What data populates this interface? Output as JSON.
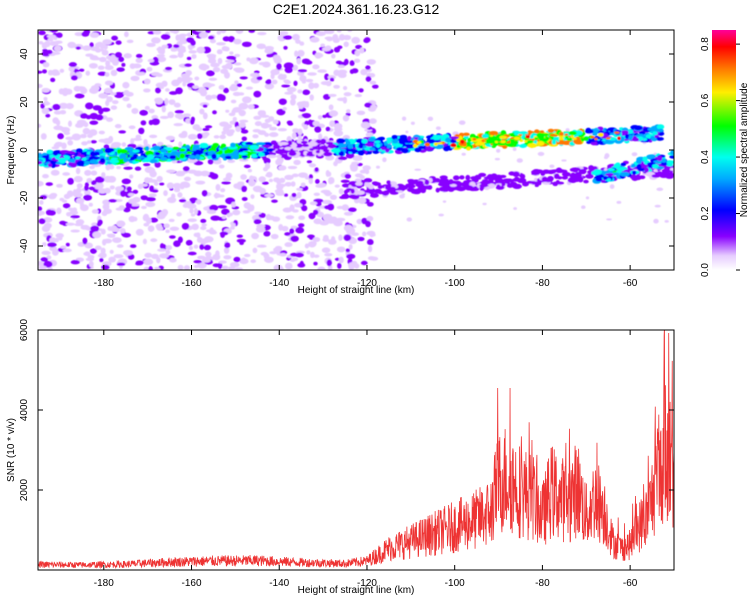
{
  "title": "C2E1.2024.361.16.23.G12",
  "chart_data": [
    {
      "type": "heatmap",
      "xlabel": "Height of straight line (km)",
      "ylabel": "Frequency (Hz)",
      "xlim": [
        -195,
        -50
      ],
      "ylim": [
        -50,
        50
      ],
      "xticks": [
        -180,
        -160,
        -140,
        -120,
        -100,
        -80,
        -60
      ],
      "yticks": [
        -40,
        -20,
        0,
        20,
        40
      ],
      "colorbar": {
        "label": "Normalized spectral amplitude",
        "range": [
          0,
          0.85
        ],
        "ticks": [
          0.0,
          0.2,
          0.4,
          0.6,
          0.8
        ],
        "colormap": [
          "#ffffff",
          "#8800ff",
          "#0000ff",
          "#00ffff",
          "#00ff00",
          "#ffff00",
          "#ff8800",
          "#ff0000",
          "#ff00aa"
        ]
      },
      "features": [
        {
          "name": "main band",
          "x_range": [
            -195,
            -53
          ],
          "freq_start": -4,
          "freq_end": 7
        },
        {
          "name": "lower band",
          "x_range": [
            -125,
            -50
          ],
          "freq_start": -17,
          "freq_end": -8
        },
        {
          "name": "right lower branch",
          "x_range": [
            -68,
            -50
          ],
          "freq_start": -11,
          "freq_end": -3
        }
      ],
      "noise_region_x": [
        -195,
        -118
      ]
    },
    {
      "type": "line",
      "xlabel": "Height of straight line (km)",
      "ylabel": "SNR (10 * v/v)",
      "xlim": [
        -195,
        -50
      ],
      "ylim": [
        0,
        6000
      ],
      "xticks": [
        -180,
        -160,
        -140,
        -120,
        -100,
        -80,
        -60
      ],
      "yticks": [
        2000,
        4000,
        6000
      ],
      "color": "#ee3333",
      "series": [
        {
          "x": [
            -195,
            -185,
            -175,
            -165,
            -155,
            -145,
            -135,
            -125,
            -120,
            -115,
            -110,
            -105,
            -100,
            -95,
            -92,
            -90,
            -88,
            -85,
            -82,
            -80,
            -78,
            -76,
            -74,
            -72,
            -70,
            -68,
            -66,
            -64,
            -62,
            -60,
            -58,
            -56,
            -54,
            -52,
            -50
          ],
          "y": [
            150,
            140,
            160,
            220,
            250,
            260,
            210,
            180,
            250,
            600,
            800,
            1000,
            1200,
            1400,
            1600,
            2400,
            2600,
            2200,
            2000,
            1500,
            2200,
            2000,
            1900,
            2300,
            1500,
            2000,
            1700,
            800,
            600,
            700,
            1200,
            1500,
            2500,
            3500,
            2500
          ]
        }
      ]
    }
  ]
}
